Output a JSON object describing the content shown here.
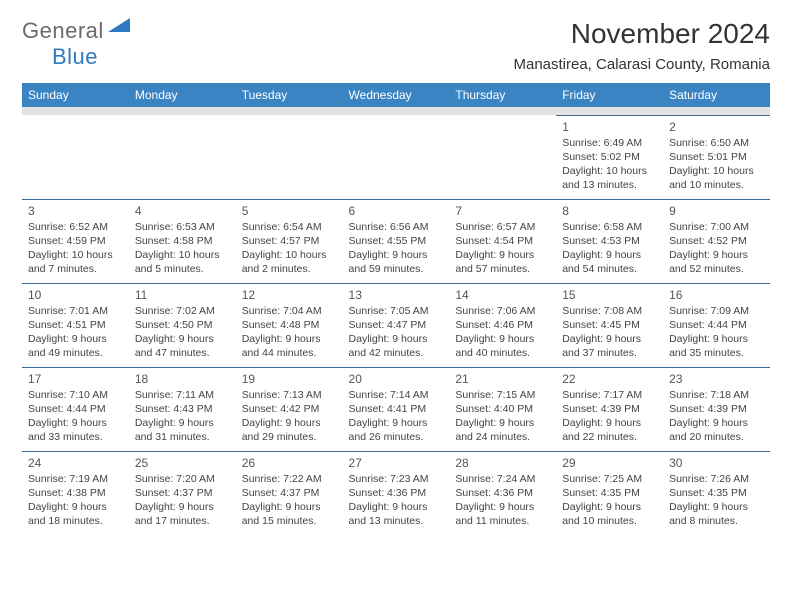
{
  "logo": {
    "word1": "General",
    "word2": "Blue"
  },
  "title": "November 2024",
  "location": "Manastirea, Calarasi County, Romania",
  "colors": {
    "header_bg": "#3a84c4",
    "header_text": "#ffffff",
    "band_bg": "#e2e2e2",
    "cell_border": "#3a6a9a",
    "body_text": "#444444",
    "logo_gray": "#6b6b6b",
    "logo_blue": "#2f7ac0"
  },
  "weekdays": [
    "Sunday",
    "Monday",
    "Tuesday",
    "Wednesday",
    "Thursday",
    "Friday",
    "Saturday"
  ],
  "weeks": [
    [
      null,
      null,
      null,
      null,
      null,
      {
        "n": "1",
        "sr": "Sunrise: 6:49 AM",
        "ss": "Sunset: 5:02 PM",
        "d1": "Daylight: 10 hours",
        "d2": "and 13 minutes."
      },
      {
        "n": "2",
        "sr": "Sunrise: 6:50 AM",
        "ss": "Sunset: 5:01 PM",
        "d1": "Daylight: 10 hours",
        "d2": "and 10 minutes."
      }
    ],
    [
      {
        "n": "3",
        "sr": "Sunrise: 6:52 AM",
        "ss": "Sunset: 4:59 PM",
        "d1": "Daylight: 10 hours",
        "d2": "and 7 minutes."
      },
      {
        "n": "4",
        "sr": "Sunrise: 6:53 AM",
        "ss": "Sunset: 4:58 PM",
        "d1": "Daylight: 10 hours",
        "d2": "and 5 minutes."
      },
      {
        "n": "5",
        "sr": "Sunrise: 6:54 AM",
        "ss": "Sunset: 4:57 PM",
        "d1": "Daylight: 10 hours",
        "d2": "and 2 minutes."
      },
      {
        "n": "6",
        "sr": "Sunrise: 6:56 AM",
        "ss": "Sunset: 4:55 PM",
        "d1": "Daylight: 9 hours",
        "d2": "and 59 minutes."
      },
      {
        "n": "7",
        "sr": "Sunrise: 6:57 AM",
        "ss": "Sunset: 4:54 PM",
        "d1": "Daylight: 9 hours",
        "d2": "and 57 minutes."
      },
      {
        "n": "8",
        "sr": "Sunrise: 6:58 AM",
        "ss": "Sunset: 4:53 PM",
        "d1": "Daylight: 9 hours",
        "d2": "and 54 minutes."
      },
      {
        "n": "9",
        "sr": "Sunrise: 7:00 AM",
        "ss": "Sunset: 4:52 PM",
        "d1": "Daylight: 9 hours",
        "d2": "and 52 minutes."
      }
    ],
    [
      {
        "n": "10",
        "sr": "Sunrise: 7:01 AM",
        "ss": "Sunset: 4:51 PM",
        "d1": "Daylight: 9 hours",
        "d2": "and 49 minutes."
      },
      {
        "n": "11",
        "sr": "Sunrise: 7:02 AM",
        "ss": "Sunset: 4:50 PM",
        "d1": "Daylight: 9 hours",
        "d2": "and 47 minutes."
      },
      {
        "n": "12",
        "sr": "Sunrise: 7:04 AM",
        "ss": "Sunset: 4:48 PM",
        "d1": "Daylight: 9 hours",
        "d2": "and 44 minutes."
      },
      {
        "n": "13",
        "sr": "Sunrise: 7:05 AM",
        "ss": "Sunset: 4:47 PM",
        "d1": "Daylight: 9 hours",
        "d2": "and 42 minutes."
      },
      {
        "n": "14",
        "sr": "Sunrise: 7:06 AM",
        "ss": "Sunset: 4:46 PM",
        "d1": "Daylight: 9 hours",
        "d2": "and 40 minutes."
      },
      {
        "n": "15",
        "sr": "Sunrise: 7:08 AM",
        "ss": "Sunset: 4:45 PM",
        "d1": "Daylight: 9 hours",
        "d2": "and 37 minutes."
      },
      {
        "n": "16",
        "sr": "Sunrise: 7:09 AM",
        "ss": "Sunset: 4:44 PM",
        "d1": "Daylight: 9 hours",
        "d2": "and 35 minutes."
      }
    ],
    [
      {
        "n": "17",
        "sr": "Sunrise: 7:10 AM",
        "ss": "Sunset: 4:44 PM",
        "d1": "Daylight: 9 hours",
        "d2": "and 33 minutes."
      },
      {
        "n": "18",
        "sr": "Sunrise: 7:11 AM",
        "ss": "Sunset: 4:43 PM",
        "d1": "Daylight: 9 hours",
        "d2": "and 31 minutes."
      },
      {
        "n": "19",
        "sr": "Sunrise: 7:13 AM",
        "ss": "Sunset: 4:42 PM",
        "d1": "Daylight: 9 hours",
        "d2": "and 29 minutes."
      },
      {
        "n": "20",
        "sr": "Sunrise: 7:14 AM",
        "ss": "Sunset: 4:41 PM",
        "d1": "Daylight: 9 hours",
        "d2": "and 26 minutes."
      },
      {
        "n": "21",
        "sr": "Sunrise: 7:15 AM",
        "ss": "Sunset: 4:40 PM",
        "d1": "Daylight: 9 hours",
        "d2": "and 24 minutes."
      },
      {
        "n": "22",
        "sr": "Sunrise: 7:17 AM",
        "ss": "Sunset: 4:39 PM",
        "d1": "Daylight: 9 hours",
        "d2": "and 22 minutes."
      },
      {
        "n": "23",
        "sr": "Sunrise: 7:18 AM",
        "ss": "Sunset: 4:39 PM",
        "d1": "Daylight: 9 hours",
        "d2": "and 20 minutes."
      }
    ],
    [
      {
        "n": "24",
        "sr": "Sunrise: 7:19 AM",
        "ss": "Sunset: 4:38 PM",
        "d1": "Daylight: 9 hours",
        "d2": "and 18 minutes."
      },
      {
        "n": "25",
        "sr": "Sunrise: 7:20 AM",
        "ss": "Sunset: 4:37 PM",
        "d1": "Daylight: 9 hours",
        "d2": "and 17 minutes."
      },
      {
        "n": "26",
        "sr": "Sunrise: 7:22 AM",
        "ss": "Sunset: 4:37 PM",
        "d1": "Daylight: 9 hours",
        "d2": "and 15 minutes."
      },
      {
        "n": "27",
        "sr": "Sunrise: 7:23 AM",
        "ss": "Sunset: 4:36 PM",
        "d1": "Daylight: 9 hours",
        "d2": "and 13 minutes."
      },
      {
        "n": "28",
        "sr": "Sunrise: 7:24 AM",
        "ss": "Sunset: 4:36 PM",
        "d1": "Daylight: 9 hours",
        "d2": "and 11 minutes."
      },
      {
        "n": "29",
        "sr": "Sunrise: 7:25 AM",
        "ss": "Sunset: 4:35 PM",
        "d1": "Daylight: 9 hours",
        "d2": "and 10 minutes."
      },
      {
        "n": "30",
        "sr": "Sunrise: 7:26 AM",
        "ss": "Sunset: 4:35 PM",
        "d1": "Daylight: 9 hours",
        "d2": "and 8 minutes."
      }
    ]
  ]
}
